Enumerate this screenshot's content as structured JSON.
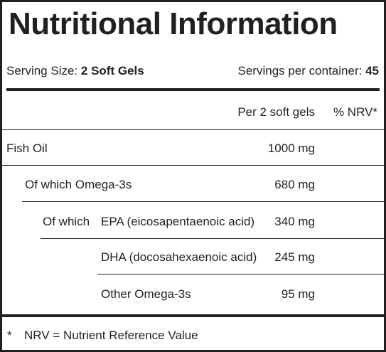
{
  "title": "Nutritional Information",
  "serving": {
    "size_label": "Serving Size:",
    "size_value": "2 Soft Gels",
    "per_container_label": "Servings per container:",
    "per_container_value": "45"
  },
  "columns": {
    "per": "Per 2 soft gels",
    "nrv": "% NRV*"
  },
  "rows": [
    {
      "label": "Fish Oil",
      "amount": "1000 mg"
    },
    {
      "label": "Of which Omega-3s",
      "amount": "680 mg"
    },
    {
      "prefix": "Of which",
      "label": "EPA (eicosapentaenoic acid)",
      "amount": "340 mg"
    },
    {
      "label": "DHA (docosahexaenoic acid)",
      "amount": "245 mg"
    },
    {
      "label": "Other Omega-3s",
      "amount": "95 mg"
    }
  ],
  "footnote": {
    "marker": "*",
    "text": "NRV = Nutrient Reference Value"
  }
}
